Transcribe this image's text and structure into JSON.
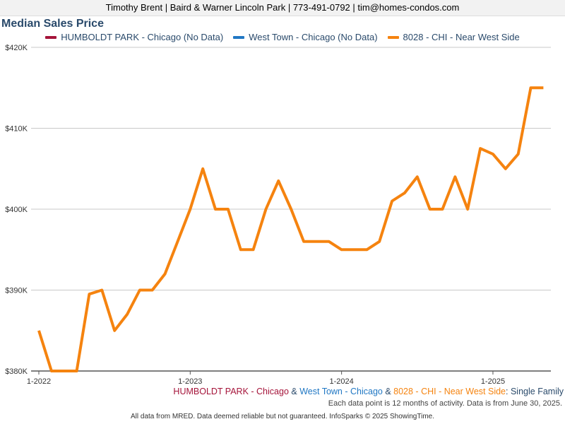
{
  "header": {
    "text": "Timothy Brent | Baird & Warner Lincoln Park | 773-491-0792 | tim@homes-condos.com"
  },
  "legend": [
    {
      "label": "HUMBOLDT PARK - Chicago (No Data)",
      "color": "#a5143a"
    },
    {
      "label": "West Town - Chicago (No Data)",
      "color": "#2178c4"
    },
    {
      "label": "8028 - CHI - Near West Side",
      "color": "#f5830f"
    }
  ],
  "caption": {
    "part1": "HUMBOLDT PARK - Chicago",
    "sep1": " & ",
    "part2": "West Town - Chicago",
    "sep2": " & ",
    "part3": "8028 - CHI - Near West Side",
    "sep3": ": ",
    "part4": "Single Family",
    "color1": "#a5143a",
    "color2": "#2178c4",
    "color3": "#f5830f",
    "color4": "#2a4a6b",
    "sepcolor": "#2a4a6b"
  },
  "subcaption": "Each data point is 12 months of activity. Data is from June 30, 2025.",
  "footer": "All data from MRED. Data deemed reliable but not guaranteed. InfoSparks © 2025 ShowingTime.",
  "chart_data": {
    "type": "line",
    "title": "Median Sales Price",
    "xlabel": "",
    "ylabel": "",
    "ylim": [
      380000,
      420000
    ],
    "yticks": [
      380000,
      390000,
      400000,
      410000,
      420000
    ],
    "ytick_labels": [
      "$380K",
      "$390K",
      "$400K",
      "$410K",
      "$420K"
    ],
    "xticks": [
      "2022-01",
      "2023-01",
      "2024-01",
      "2025-01"
    ],
    "xtick_labels": [
      "1-2022",
      "1-2023",
      "1-2024",
      "1-2025"
    ],
    "grid": "horizontal",
    "legend_position": "top",
    "series": [
      {
        "name": "8028 - CHI - Near West Side",
        "color": "#f5830f",
        "points": [
          {
            "x": "2022-01",
            "y": 385000
          },
          {
            "x": "2022-02",
            "y": 380000
          },
          {
            "x": "2022-03",
            "y": 380000
          },
          {
            "x": "2022-04",
            "y": 380000
          },
          {
            "x": "2022-05",
            "y": 389500
          },
          {
            "x": "2022-06",
            "y": 390000
          },
          {
            "x": "2022-07",
            "y": 385000
          },
          {
            "x": "2022-08",
            "y": 387000
          },
          {
            "x": "2022-09",
            "y": 390000
          },
          {
            "x": "2022-10",
            "y": 390000
          },
          {
            "x": "2022-11",
            "y": 392000
          },
          {
            "x": "2022-12",
            "y": 396000
          },
          {
            "x": "2023-01",
            "y": 400000
          },
          {
            "x": "2023-02",
            "y": 405000
          },
          {
            "x": "2023-03",
            "y": 400000
          },
          {
            "x": "2023-04",
            "y": 400000
          },
          {
            "x": "2023-05",
            "y": 395000
          },
          {
            "x": "2023-06",
            "y": 395000
          },
          {
            "x": "2023-07",
            "y": 400000
          },
          {
            "x": "2023-08",
            "y": 403500
          },
          {
            "x": "2023-09",
            "y": 400000
          },
          {
            "x": "2023-10",
            "y": 396000
          },
          {
            "x": "2023-11",
            "y": 396000
          },
          {
            "x": "2023-12",
            "y": 396000
          },
          {
            "x": "2024-01",
            "y": 395000
          },
          {
            "x": "2024-02",
            "y": 395000
          },
          {
            "x": "2024-03",
            "y": 395000
          },
          {
            "x": "2024-04",
            "y": 396000
          },
          {
            "x": "2024-05",
            "y": 401000
          },
          {
            "x": "2024-06",
            "y": 402000
          },
          {
            "x": "2024-07",
            "y": 404000
          },
          {
            "x": "2024-08",
            "y": 400000
          },
          {
            "x": "2024-09",
            "y": 400000
          },
          {
            "x": "2024-10",
            "y": 404000
          },
          {
            "x": "2024-11",
            "y": 400000
          },
          {
            "x": "2024-12",
            "y": 407500
          },
          {
            "x": "2025-01",
            "y": 406800
          },
          {
            "x": "2025-02",
            "y": 405000
          },
          {
            "x": "2025-03",
            "y": 406800
          },
          {
            "x": "2025-04",
            "y": 415000
          },
          {
            "x": "2025-05",
            "y": 415000
          }
        ]
      }
    ]
  }
}
